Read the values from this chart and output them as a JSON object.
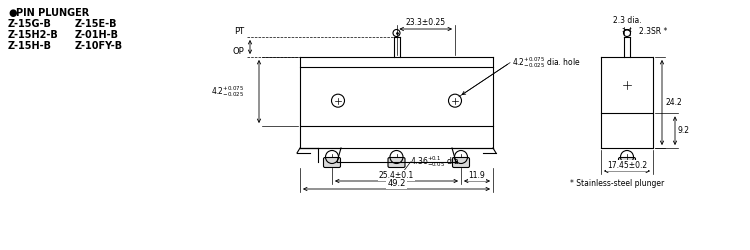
{
  "bg_color": "#ffffff",
  "line_color": "#000000",
  "text_color": "#000000",
  "title_text": "PIN PLUNGER",
  "models_left": [
    "Z-15G-B",
    "Z-15H2-B",
    "Z-15H-B"
  ],
  "models_right": [
    "Z-15E-B",
    "Z-01H-B",
    "Z-10FY-B"
  ],
  "note": "* Stainless-steel plunger",
  "dim_23_3": "23.3±0.25",
  "dim_4_2_hole": "4.2",
  "dim_2_3_dia": "2.3 dia.",
  "dim_2_3SR": "2.3SR *",
  "dim_24_2": "24.2",
  "dim_9_2": "9.2",
  "dim_17_45": "17.45±0.2",
  "dim_25_4": "25.4±0.1",
  "dim_11_9": "11.9",
  "dim_49_2": "49.2",
  "label_PT": "PT",
  "label_OP": "OP"
}
